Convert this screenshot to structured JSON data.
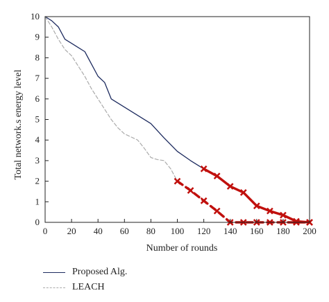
{
  "chart_data": {
    "type": "line",
    "xlabel": "Number of rounds",
    "ylabel": "Total network.s energy level",
    "xlim": [
      0,
      200
    ],
    "ylim": [
      0,
      10
    ],
    "xticks": [
      0,
      20,
      40,
      60,
      80,
      100,
      120,
      140,
      160,
      180,
      200
    ],
    "yticks": [
      0,
      1,
      2,
      3,
      4,
      5,
      6,
      7,
      8,
      9,
      10
    ],
    "grid": false,
    "legend_position": "below plot, left",
    "series": [
      {
        "name": "Proposed Alg.",
        "color": "#1c2a5e",
        "style": "solid",
        "points": [
          [
            0,
            10
          ],
          [
            5,
            9.8
          ],
          [
            10,
            9.5
          ],
          [
            15,
            8.9
          ],
          [
            20,
            8.7
          ],
          [
            25,
            8.5
          ],
          [
            30,
            8.3
          ],
          [
            35,
            7.7
          ],
          [
            40,
            7.1
          ],
          [
            45,
            6.8
          ],
          [
            50,
            6.0
          ],
          [
            60,
            5.6
          ],
          [
            70,
            5.2
          ],
          [
            80,
            4.8
          ],
          [
            90,
            4.1
          ],
          [
            100,
            3.45
          ],
          [
            110,
            3.0
          ],
          [
            120,
            2.6
          ]
        ]
      },
      {
        "name": "LEACH",
        "color": "#aaaaaa",
        "style": "dashed",
        "points": [
          [
            0,
            10
          ],
          [
            5,
            9.5
          ],
          [
            10,
            8.9
          ],
          [
            15,
            8.4
          ],
          [
            20,
            8.1
          ],
          [
            25,
            7.6
          ],
          [
            30,
            7.1
          ],
          [
            35,
            6.5
          ],
          [
            40,
            6.0
          ],
          [
            45,
            5.5
          ],
          [
            50,
            5.0
          ],
          [
            55,
            4.6
          ],
          [
            60,
            4.3
          ],
          [
            65,
            4.15
          ],
          [
            70,
            4.0
          ],
          [
            75,
            3.6
          ],
          [
            80,
            3.15
          ],
          [
            85,
            3.05
          ],
          [
            90,
            3.0
          ],
          [
            95,
            2.6
          ],
          [
            100,
            2.0
          ]
        ]
      },
      {
        "name": "",
        "color": "#c0100d",
        "style": "solid-thick-markers",
        "points": [
          [
            120,
            2.6
          ],
          [
            130,
            2.25
          ],
          [
            140,
            1.75
          ],
          [
            150,
            1.45
          ],
          [
            160,
            0.8
          ],
          [
            170,
            0.55
          ],
          [
            180,
            0.35
          ],
          [
            190,
            0.05
          ],
          [
            200,
            0.0
          ]
        ]
      },
      {
        "name": "",
        "color": "#c0100d",
        "style": "dashed-thick-markers",
        "points": [
          [
            100,
            2.0
          ],
          [
            110,
            1.55
          ],
          [
            120,
            1.05
          ],
          [
            130,
            0.55
          ],
          [
            140,
            0.0
          ],
          [
            150,
            0.0
          ],
          [
            160,
            0.0
          ],
          [
            170,
            0.0
          ],
          [
            180,
            0.0
          ],
          [
            190,
            0.0
          ],
          [
            200,
            0.0
          ]
        ]
      }
    ]
  }
}
